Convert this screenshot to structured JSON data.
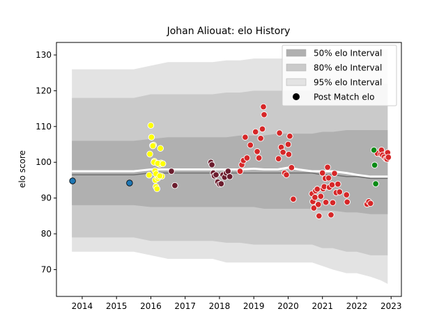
{
  "chart_data": {
    "type": "scatter",
    "title": "Johan Aliouat: elo History",
    "xlabel": "",
    "ylabel": "elo score",
    "xlim": [
      2013.25,
      2023.3
    ],
    "ylim": [
      62.5,
      133.5
    ],
    "x_ticks": [
      "2014",
      "2015",
      "2016",
      "2017",
      "2018",
      "2019",
      "2020",
      "2021",
      "2022",
      "2023"
    ],
    "y_ticks": [
      "70",
      "80",
      "90",
      "100",
      "110",
      "120",
      "130"
    ],
    "grid": false,
    "legend_position": "top-right",
    "legend": [
      {
        "label": "50% elo Interval",
        "kind": "band",
        "color": "#b0b0b0"
      },
      {
        "label": "80% elo Interval",
        "kind": "band",
        "color": "#cacaca"
      },
      {
        "label": "95% elo Interval",
        "kind": "band",
        "color": "#e3e3e3"
      },
      {
        "label": "Post Match elo",
        "kind": "marker",
        "color": "#000000"
      }
    ],
    "bands": {
      "x": [
        2013.7,
        2015.5,
        2016.0,
        2016.5,
        2017.0,
        2017.8,
        2018.2,
        2018.6,
        2019.0,
        2019.3,
        2019.7,
        2020.0,
        2020.3,
        2020.7,
        2021.0,
        2021.3,
        2021.7,
        2022.0,
        2022.4,
        2022.7,
        2022.9
      ],
      "p95_low": [
        75,
        75,
        74,
        73,
        73,
        73,
        72,
        72,
        72,
        72,
        72,
        72,
        72,
        72,
        71,
        70,
        69,
        69,
        68,
        67,
        66
      ],
      "p95_high": [
        126,
        126,
        127,
        128,
        128,
        128,
        128.5,
        128.5,
        129,
        129,
        129,
        129,
        129,
        129.5,
        130,
        130,
        130.5,
        131,
        131.5,
        131.5,
        131.5
      ],
      "p80_low": [
        79,
        79,
        78,
        78,
        78,
        78,
        77.5,
        77.5,
        77,
        77,
        77,
        77,
        77,
        77,
        76,
        76,
        75,
        75,
        74,
        74,
        74
      ],
      "p80_high": [
        118,
        118,
        119,
        119,
        119,
        119,
        119.5,
        119.5,
        120,
        120,
        120,
        120,
        120,
        120,
        121,
        121,
        121.5,
        122,
        122,
        122,
        122
      ],
      "p50_low": [
        88,
        88,
        87.5,
        87.5,
        87.5,
        87.5,
        87.5,
        87.5,
        87.5,
        87,
        87,
        87,
        87,
        87,
        86.5,
        86.5,
        86,
        86,
        85.5,
        85.5,
        85.5
      ],
      "p50_high": [
        106,
        106,
        106.5,
        107,
        107,
        107,
        107,
        107.5,
        107.5,
        107.5,
        108,
        108,
        108,
        108,
        108.5,
        108.5,
        109,
        109,
        109,
        109,
        109
      ],
      "mean": [
        96.5,
        96.5,
        97,
        97,
        97,
        97,
        97,
        97,
        97,
        97,
        97,
        97,
        97,
        97,
        96.5,
        96.5,
        96,
        96,
        95.5,
        95.5,
        95.5
      ],
      "white": [
        97.5,
        97.5,
        98,
        98,
        98,
        98,
        98,
        98,
        98.2,
        98,
        98,
        98.5,
        98,
        97.5,
        97.5,
        97.5,
        97,
        96.5,
        96,
        96,
        96
      ]
    },
    "series": [
      {
        "color": "#1f77b4",
        "x": [
          2013.72,
          2015.38
        ],
        "y": [
          94.8,
          94.2
        ]
      },
      {
        "color": "#ffff00",
        "x": [
          2016.0,
          2016.02,
          2016.05,
          2016.08,
          2016.1,
          2016.12,
          2016.13,
          2016.15,
          2016.18,
          2016.2,
          2016.22,
          2016.25,
          2016.28,
          2016.3,
          2016.32,
          2015.95,
          2015.97,
          2016.06,
          2016.09,
          2016.15,
          2016.2,
          2016.26,
          2016.35
        ],
        "y": [
          110.3,
          107.0,
          104.7,
          104.8,
          100.3,
          97.6,
          95.0,
          93.2,
          92.6,
          95.5,
          96.0,
          99.4,
          103.9,
          99.8,
          96.1,
          96.4,
          102.3,
          104.6,
          100.0,
          96.8,
          99.7,
          96.2,
          99.6
        ]
      },
      {
        "color": "#6b1d2e",
        "x": [
          2016.6,
          2016.7,
          2017.75,
          2017.78,
          2017.82,
          2017.85,
          2017.9,
          2017.95,
          2018.0,
          2018.05,
          2018.1,
          2018.15,
          2018.2,
          2018.25,
          2018.3
        ],
        "y": [
          97.5,
          93.5,
          100.0,
          99.3,
          97.0,
          96.2,
          96.5,
          94.5,
          93.9,
          94.0,
          96.5,
          95.8,
          97.0,
          97.5,
          96.0
        ]
      },
      {
        "color": "#d62728",
        "x": [
          2018.6,
          2018.65,
          2018.7,
          2018.75,
          2018.8,
          2018.9,
          2019.05,
          2019.1,
          2019.15,
          2019.2,
          2019.25,
          2019.28,
          2019.3,
          2019.72,
          2019.75,
          2019.8,
          2019.85,
          2019.9,
          2019.95,
          2020.0,
          2020.02,
          2020.05,
          2020.1,
          2020.15,
          2020.7,
          2020.72,
          2020.75,
          2020.78,
          2020.8,
          2020.85,
          2020.88,
          2020.9,
          2020.95,
          2021.0,
          2021.02,
          2021.05,
          2021.08,
          2021.1,
          2021.15,
          2021.18,
          2021.2,
          2021.25,
          2021.28,
          2021.3,
          2021.35,
          2021.4,
          2021.45,
          2021.5,
          2021.7,
          2021.72,
          2022.3,
          2022.35,
          2022.4,
          2022.6,
          2022.7,
          2022.72,
          2022.75,
          2022.8,
          2022.85,
          2022.88,
          2022.9,
          2022.92
        ],
        "y": [
          97.5,
          99.3,
          100.5,
          107.0,
          101.2,
          104.8,
          108.5,
          103.0,
          101.2,
          106.7,
          109.3,
          115.5,
          113.3,
          101.0,
          108.2,
          104.2,
          102.8,
          97.0,
          96.5,
          105.0,
          102.2,
          107.3,
          98.5,
          89.7,
          91.2,
          89.0,
          87.2,
          90.2,
          92.0,
          92.5,
          88.2,
          85.0,
          90.5,
          97.0,
          92.6,
          93.2,
          95.5,
          88.8,
          98.6,
          95.6,
          93.0,
          85.3,
          93.7,
          88.7,
          96.9,
          91.5,
          93.9,
          91.7,
          90.9,
          88.9,
          88.3,
          89.0,
          88.5,
          102.5,
          102.3,
          103.4,
          102.0,
          101.5,
          101.0,
          100.9,
          102.7,
          101.4
        ]
      },
      {
        "color": "#0a8a15",
        "x": [
          2022.5,
          2022.52,
          2022.55
        ],
        "y": [
          103.4,
          99.2,
          94.0
        ]
      }
    ]
  }
}
